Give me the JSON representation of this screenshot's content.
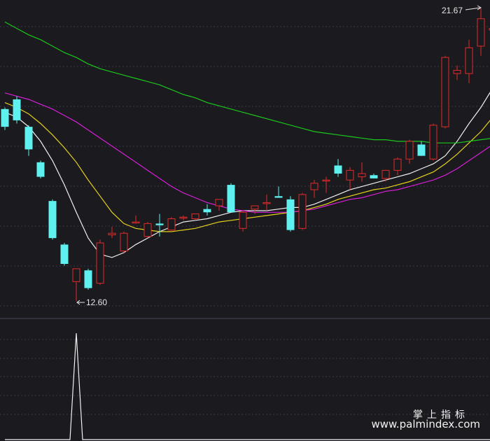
{
  "chart_data": {
    "type": "candlestick",
    "colors": {
      "background": "#1b1b1f",
      "up": "#e02a2a",
      "down": "#5ff0f0",
      "ma_white": "#f0f0f0",
      "ma_yellow": "#e6d21c",
      "ma_magenta": "#d81ed8",
      "ma_green": "#1bc61b",
      "grid": "#3a3a48",
      "label": "#e6e6e6",
      "oscillator": "#f0f0f0"
    },
    "price_range": [
      11.9,
      22.1
    ],
    "candles": [
      {
        "o": 18.55,
        "h": 18.6,
        "l": 17.9,
        "c": 18.0
      },
      {
        "o": 18.85,
        "h": 18.95,
        "l": 18.1,
        "c": 18.2
      },
      {
        "o": 18.0,
        "h": 18.05,
        "l": 17.1,
        "c": 17.3
      },
      {
        "o": 16.9,
        "h": 16.95,
        "l": 16.4,
        "c": 16.45
      },
      {
        "o": 15.7,
        "h": 15.75,
        "l": 14.5,
        "c": 14.55
      },
      {
        "o": 14.35,
        "h": 14.4,
        "l": 13.7,
        "c": 13.75
      },
      {
        "o": 13.2,
        "h": 13.6,
        "l": 12.6,
        "c": 13.6
      },
      {
        "o": 13.55,
        "h": 13.6,
        "l": 12.95,
        "c": 13.0
      },
      {
        "o": 13.15,
        "h": 14.5,
        "l": 13.1,
        "c": 14.4
      },
      {
        "o": 14.65,
        "h": 14.9,
        "l": 14.55,
        "c": 14.7
      },
      {
        "o": 14.15,
        "h": 14.75,
        "l": 14.1,
        "c": 14.7
      },
      {
        "o": 15.05,
        "h": 15.25,
        "l": 15.0,
        "c": 15.05
      },
      {
        "o": 14.6,
        "h": 15.05,
        "l": 14.55,
        "c": 15.0
      },
      {
        "o": 15.0,
        "h": 15.3,
        "l": 14.6,
        "c": 14.95
      },
      {
        "o": 14.8,
        "h": 15.2,
        "l": 14.75,
        "c": 15.15
      },
      {
        "o": 15.2,
        "h": 15.25,
        "l": 15.1,
        "c": 15.2
      },
      {
        "o": 15.15,
        "h": 15.3,
        "l": 15.1,
        "c": 15.3
      },
      {
        "o": 15.45,
        "h": 15.6,
        "l": 15.25,
        "c": 15.35
      },
      {
        "o": 15.55,
        "h": 15.75,
        "l": 15.4,
        "c": 15.75
      },
      {
        "o": 16.2,
        "h": 16.25,
        "l": 15.35,
        "c": 15.35
      },
      {
        "o": 14.85,
        "h": 15.4,
        "l": 14.75,
        "c": 15.35
      },
      {
        "o": 15.45,
        "h": 15.55,
        "l": 15.3,
        "c": 15.55
      },
      {
        "o": 15.65,
        "h": 15.9,
        "l": 15.4,
        "c": 15.65
      },
      {
        "o": 15.85,
        "h": 16.15,
        "l": 15.8,
        "c": 15.8
      },
      {
        "o": 15.75,
        "h": 15.85,
        "l": 14.75,
        "c": 14.8
      },
      {
        "o": 14.85,
        "h": 15.95,
        "l": 14.8,
        "c": 15.9
      },
      {
        "o": 16.05,
        "h": 16.35,
        "l": 15.8,
        "c": 16.25
      },
      {
        "o": 16.35,
        "h": 16.45,
        "l": 15.95,
        "c": 16.35
      },
      {
        "o": 16.8,
        "h": 17.0,
        "l": 16.45,
        "c": 16.55
      },
      {
        "o": 16.35,
        "h": 16.75,
        "l": 16.05,
        "c": 16.65
      },
      {
        "o": 16.45,
        "h": 16.9,
        "l": 16.3,
        "c": 16.55
      },
      {
        "o": 16.5,
        "h": 16.55,
        "l": 16.4,
        "c": 16.4
      },
      {
        "o": 16.4,
        "h": 16.65,
        "l": 16.3,
        "c": 16.65
      },
      {
        "o": 16.65,
        "h": 17.05,
        "l": 16.5,
        "c": 17.0
      },
      {
        "o": 17.0,
        "h": 17.6,
        "l": 16.85,
        "c": 17.55
      },
      {
        "o": 17.45,
        "h": 17.55,
        "l": 17.1,
        "c": 17.1
      },
      {
        "o": 17.0,
        "h": 18.1,
        "l": 16.95,
        "c": 18.05
      },
      {
        "o": 18.0,
        "h": 20.2,
        "l": 17.95,
        "c": 20.15
      },
      {
        "o": 19.65,
        "h": 19.9,
        "l": 19.45,
        "c": 19.75
      },
      {
        "o": 19.65,
        "h": 20.7,
        "l": 19.35,
        "c": 20.45
      },
      {
        "o": 20.5,
        "h": 21.67,
        "l": 20.2,
        "c": 21.35
      },
      {
        "o": 21.0,
        "h": 21.5,
        "l": 20.6,
        "c": 21.05
      },
      {
        "o": 21.15,
        "h": 21.25,
        "l": 20.5,
        "c": 20.6
      }
    ],
    "ma_lines": [
      {
        "color": "#f0f0f0",
        "values": [
          18.45,
          18.3,
          18.0,
          17.55,
          16.95,
          16.2,
          15.35,
          14.55,
          14.05,
          13.95,
          14.1,
          14.35,
          14.55,
          14.75,
          14.9,
          15.05,
          15.1,
          15.15,
          15.25,
          15.35,
          15.4,
          15.4,
          15.4,
          15.45,
          15.5,
          15.5,
          15.6,
          15.75,
          15.9,
          16.05,
          16.15,
          16.25,
          16.35,
          16.45,
          16.55,
          16.7,
          16.85,
          17.1,
          17.55,
          18.1,
          18.6,
          19.2,
          19.95
        ]
      },
      {
        "color": "#e6d21c",
        "values": [
          18.75,
          18.6,
          18.4,
          18.1,
          17.75,
          17.35,
          16.9,
          16.35,
          15.85,
          15.35,
          15.0,
          14.85,
          14.8,
          14.75,
          14.75,
          14.8,
          14.85,
          14.95,
          15.05,
          15.1,
          15.15,
          15.2,
          15.25,
          15.3,
          15.35,
          15.4,
          15.5,
          15.6,
          15.75,
          15.85,
          15.95,
          16.05,
          16.1,
          16.2,
          16.3,
          16.45,
          16.6,
          16.85,
          17.15,
          17.5,
          17.85,
          18.3,
          18.85
        ]
      },
      {
        "color": "#d81ed8",
        "values": [
          19.05,
          18.95,
          18.85,
          18.7,
          18.55,
          18.35,
          18.15,
          17.9,
          17.65,
          17.4,
          17.15,
          16.9,
          16.65,
          16.4,
          16.15,
          15.95,
          15.8,
          15.65,
          15.55,
          15.45,
          15.4,
          15.35,
          15.35,
          15.35,
          15.35,
          15.4,
          15.45,
          15.55,
          15.65,
          15.75,
          15.8,
          15.9,
          16.0,
          16.05,
          16.15,
          16.25,
          16.35,
          16.5,
          16.7,
          16.95,
          17.2,
          17.45,
          17.75
        ]
      },
      {
        "color": "#1bc61b",
        "values": [
          21.25,
          21.05,
          20.85,
          20.7,
          20.5,
          20.3,
          20.15,
          19.95,
          19.8,
          19.7,
          19.6,
          19.5,
          19.4,
          19.3,
          19.15,
          19.0,
          18.9,
          18.75,
          18.65,
          18.55,
          18.45,
          18.35,
          18.25,
          18.15,
          18.05,
          17.95,
          17.85,
          17.8,
          17.75,
          17.7,
          17.65,
          17.6,
          17.6,
          17.55,
          17.55,
          17.55,
          17.5,
          17.5,
          17.5,
          17.55,
          17.6,
          17.65,
          17.7
        ]
      }
    ],
    "high_marker": {
      "index": 40,
      "value": 21.67,
      "label": "21.67"
    },
    "low_marker": {
      "index": 6,
      "value": 12.6,
      "label": "12.60"
    },
    "oscillator": {
      "range": [
        0,
        1
      ],
      "values": [
        0,
        0,
        0,
        0,
        0,
        0,
        1,
        0,
        0,
        0,
        0,
        0,
        0,
        0,
        0,
        0,
        0,
        0,
        0,
        0,
        0,
        0,
        0,
        0,
        0,
        0,
        0,
        0,
        0,
        0,
        0,
        0,
        0,
        0,
        0,
        0,
        0,
        0,
        0,
        0,
        0,
        0,
        0
      ]
    }
  },
  "watermark": {
    "name_cn": "掌上指标",
    "url": "www.palmindex.com"
  }
}
